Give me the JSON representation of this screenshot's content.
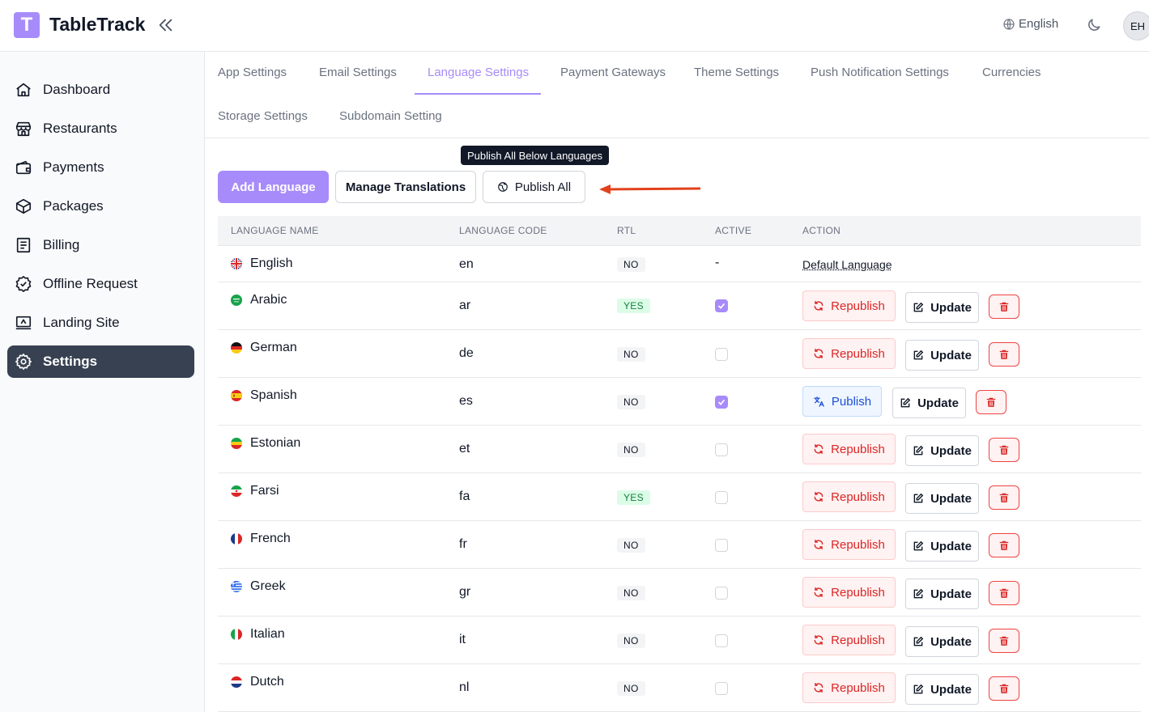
{
  "app": {
    "logo_letter": "T",
    "brand": "TableTrack"
  },
  "header": {
    "language": "English",
    "avatar_initials": "EH"
  },
  "sidebar": {
    "items": [
      {
        "label": "Dashboard",
        "icon": "home-icon"
      },
      {
        "label": "Restaurants",
        "icon": "store-icon"
      },
      {
        "label": "Payments",
        "icon": "wallet-icon"
      },
      {
        "label": "Packages",
        "icon": "box-icon"
      },
      {
        "label": "Billing",
        "icon": "document-icon"
      },
      {
        "label": "Offline Request",
        "icon": "badge-check-icon"
      },
      {
        "label": "Landing Site",
        "icon": "monitor-icon"
      },
      {
        "label": "Settings",
        "icon": "gear-icon"
      }
    ],
    "active": "Settings"
  },
  "tabs": [
    "App Settings",
    "Email Settings",
    "Language Settings",
    "Payment Gateways",
    "Theme Settings",
    "Push Notification Settings",
    "Currencies",
    "Storage Settings",
    "Subdomain Setting"
  ],
  "active_tab": "Language Settings",
  "tooltip": "Publish All Below Languages",
  "actions": {
    "add_language": "Add Language",
    "manage_translations": "Manage Translations",
    "publish_all": "Publish All"
  },
  "table": {
    "headers": [
      "LANGUAGE NAME",
      "LANGUAGE CODE",
      "RTL",
      "ACTIVE",
      "ACTION"
    ],
    "rows": [
      {
        "name": "English",
        "code": "en",
        "rtl": "NO",
        "active": null,
        "action": "Default Language"
      },
      {
        "name": "Arabic",
        "code": "ar",
        "rtl": "YES",
        "active": true,
        "action": "Republish"
      },
      {
        "name": "German",
        "code": "de",
        "rtl": "NO",
        "active": false,
        "action": "Republish"
      },
      {
        "name": "Spanish",
        "code": "es",
        "rtl": "NO",
        "active": true,
        "action": "Publish"
      },
      {
        "name": "Estonian",
        "code": "et",
        "rtl": "NO",
        "active": false,
        "action": "Republish"
      },
      {
        "name": "Farsi",
        "code": "fa",
        "rtl": "YES",
        "active": false,
        "action": "Republish"
      },
      {
        "name": "French",
        "code": "fr",
        "rtl": "NO",
        "active": false,
        "action": "Republish"
      },
      {
        "name": "Greek",
        "code": "gr",
        "rtl": "NO",
        "active": false,
        "action": "Republish"
      },
      {
        "name": "Italian",
        "code": "it",
        "rtl": "NO",
        "active": false,
        "action": "Republish"
      },
      {
        "name": "Dutch",
        "code": "nl",
        "rtl": "NO",
        "active": false,
        "action": "Republish"
      }
    ],
    "active_dash": "-",
    "update_label": "Update"
  },
  "colors": {
    "accent": "#a78bfa",
    "sidebar_active": "#374151",
    "danger": "#dc2626",
    "arrow": "#e2411c"
  }
}
